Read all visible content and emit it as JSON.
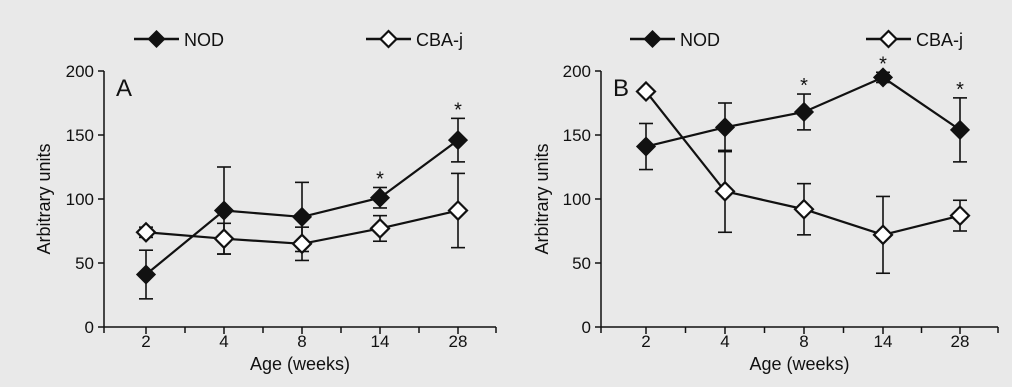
{
  "chart_data": [
    {
      "type": "line",
      "panel_label": "A",
      "xlabel": "Age (weeks)",
      "ylabel": "Arbitrary units",
      "categories": [
        "2",
        "4",
        "8",
        "14",
        "28"
      ],
      "yticks": [
        0,
        50,
        100,
        150,
        200
      ],
      "ylim": [
        0,
        200
      ],
      "grid": false,
      "legend_position": "top",
      "series": [
        {
          "name": "NOD",
          "marker": "filled-diamond",
          "color": "#111111",
          "values": [
            41,
            91,
            86,
            101,
            146
          ],
          "error": [
            19,
            34,
            27,
            8,
            17
          ],
          "significance": [
            "",
            "",
            "",
            "*",
            "*"
          ]
        },
        {
          "name": "CBA-j",
          "marker": "open-diamond",
          "color": "#111111",
          "values": [
            74,
            69,
            65,
            77,
            91
          ],
          "error": [
            4,
            12,
            13,
            10,
            29
          ],
          "significance": [
            "",
            "",
            "",
            "",
            ""
          ]
        }
      ]
    },
    {
      "type": "line",
      "panel_label": "B",
      "xlabel": "Age (weeks)",
      "ylabel": "Arbitrary units",
      "categories": [
        "2",
        "4",
        "8",
        "14",
        "28"
      ],
      "yticks": [
        0,
        50,
        100,
        150,
        200
      ],
      "ylim": [
        0,
        200
      ],
      "grid": false,
      "legend_position": "top",
      "series": [
        {
          "name": "NOD",
          "marker": "filled-diamond",
          "color": "#111111",
          "values": [
            141,
            156,
            168,
            195,
            154
          ],
          "error": [
            18,
            19,
            14,
            4,
            25
          ],
          "significance": [
            "",
            "",
            "*",
            "*",
            "*"
          ]
        },
        {
          "name": "CBA-j",
          "marker": "open-diamond",
          "color": "#111111",
          "values": [
            184,
            106,
            92,
            72,
            87
          ],
          "error": [
            2,
            32,
            20,
            30,
            12
          ],
          "significance": [
            "",
            "",
            "",
            "",
            ""
          ]
        }
      ]
    }
  ]
}
